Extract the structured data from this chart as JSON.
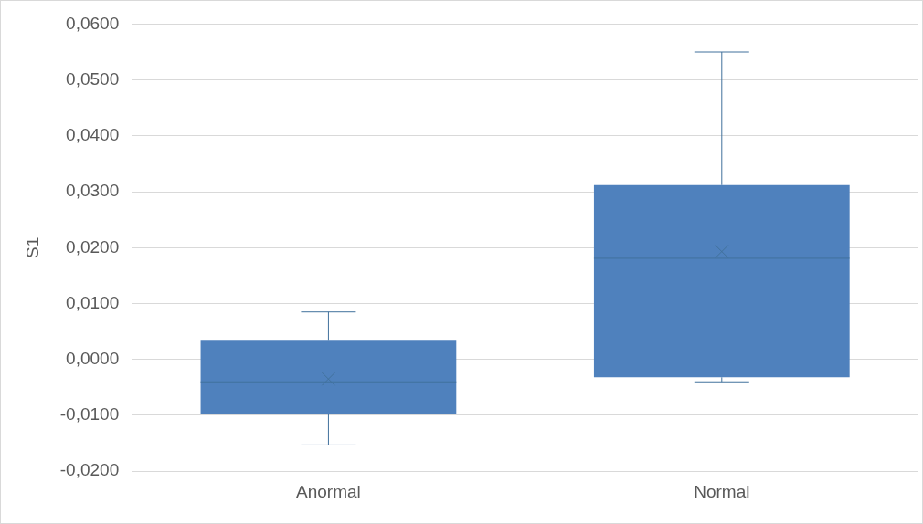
{
  "chart_data": {
    "type": "box",
    "ylabel": "S1",
    "categories": [
      "Anormal",
      "Normal"
    ],
    "color": "#4f81bd",
    "boxes": [
      {
        "low": -0.0153,
        "q1": -0.0097,
        "median": -0.004,
        "q3": 0.0035,
        "high": 0.0085,
        "mean": -0.0035
      },
      {
        "low": -0.004,
        "q1": -0.0032,
        "median": 0.0181,
        "q3": 0.0312,
        "high": 0.055,
        "mean": 0.0193
      }
    ],
    "ylim": [
      -0.02,
      0.06
    ],
    "yticks": [
      {
        "value": -0.02,
        "label": "-0,0200"
      },
      {
        "value": -0.01,
        "label": "-0,0100"
      },
      {
        "value": 0,
        "label": "0,0000"
      },
      {
        "value": 0.01,
        "label": "0,0100"
      },
      {
        "value": 0.02,
        "label": "0,0200"
      },
      {
        "value": 0.03,
        "label": "0,0300"
      },
      {
        "value": 0.04,
        "label": "0,0400"
      },
      {
        "value": 0.05,
        "label": "0,0500"
      },
      {
        "value": 0.06,
        "label": "0,0600"
      }
    ],
    "grid": "y",
    "legend": false
  }
}
